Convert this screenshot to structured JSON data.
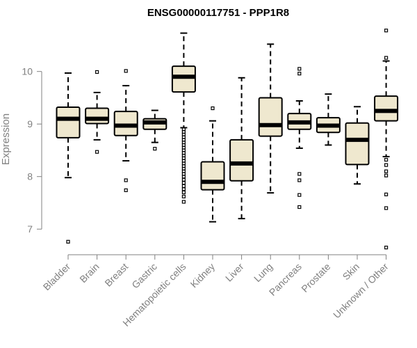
{
  "chart_data": {
    "type": "boxplot",
    "title": "ENSG00000117751 - PPP1R8",
    "xlabel": "",
    "ylabel": "Expression",
    "ylim": [
      6.6,
      10.8
    ],
    "yticks": [
      7,
      8,
      9,
      10
    ],
    "categories": [
      "Bladder",
      "Brain",
      "Breast",
      "Gastric",
      "Hematopoietic cells",
      "Kidney",
      "Liver",
      "Lung",
      "Pancreas",
      "Prostate",
      "Skin",
      "Unknown / Other"
    ],
    "boxes": [
      {
        "name": "Bladder",
        "whisker_low": 7.98,
        "q1": 8.74,
        "median": 9.1,
        "q3": 9.32,
        "whisker_high": 9.97,
        "outliers": [
          6.76
        ]
      },
      {
        "name": "Brain",
        "whisker_low": 8.7,
        "q1": 9.01,
        "median": 9.1,
        "q3": 9.3,
        "whisker_high": 9.6,
        "outliers": [
          8.47,
          9.99
        ]
      },
      {
        "name": "Breast",
        "whisker_low": 8.3,
        "q1": 8.78,
        "median": 8.97,
        "q3": 9.24,
        "whisker_high": 9.73,
        "outliers": [
          7.93,
          7.74,
          10.01
        ]
      },
      {
        "name": "Gastric",
        "whisker_low": 8.65,
        "q1": 8.9,
        "median": 9.03,
        "q3": 9.1,
        "whisker_high": 9.26,
        "outliers": [
          8.53
        ]
      },
      {
        "name": "Hematopoietic cells",
        "whisker_low": 8.93,
        "q1": 9.61,
        "median": 9.9,
        "q3": 10.1,
        "whisker_high": 10.73,
        "outliers": [
          7.52,
          7.62,
          7.7,
          7.76,
          7.82,
          7.88,
          7.94,
          8.0,
          8.05,
          8.1,
          8.15,
          8.2,
          8.25,
          8.3,
          8.35,
          8.4,
          8.45,
          8.5,
          8.55,
          8.6,
          8.65,
          8.7,
          8.75,
          8.8,
          8.85,
          8.9
        ]
      },
      {
        "name": "Kidney",
        "whisker_low": 7.14,
        "q1": 7.75,
        "median": 7.9,
        "q3": 8.28,
        "whisker_high": 9.06,
        "outliers": [
          9.3
        ]
      },
      {
        "name": "Liver",
        "whisker_low": 7.2,
        "q1": 7.92,
        "median": 8.25,
        "q3": 8.7,
        "whisker_high": 9.88,
        "outliers": []
      },
      {
        "name": "Lung",
        "whisker_low": 7.69,
        "q1": 8.77,
        "median": 8.98,
        "q3": 9.5,
        "whisker_high": 10.52,
        "outliers": []
      },
      {
        "name": "Pancreas",
        "whisker_low": 8.54,
        "q1": 8.9,
        "median": 9.03,
        "q3": 9.2,
        "whisker_high": 9.44,
        "outliers": [
          10.05,
          9.96,
          8.05,
          7.93,
          7.65,
          7.42
        ]
      },
      {
        "name": "Prostate",
        "whisker_low": 8.6,
        "q1": 8.84,
        "median": 8.97,
        "q3": 9.12,
        "whisker_high": 9.57,
        "outliers": []
      },
      {
        "name": "Skin",
        "whisker_low": 7.86,
        "q1": 8.23,
        "median": 8.7,
        "q3": 9.02,
        "whisker_high": 9.33,
        "outliers": []
      },
      {
        "name": "Unknown / Other",
        "whisker_low": 8.38,
        "q1": 9.06,
        "median": 9.25,
        "q3": 9.53,
        "whisker_high": 10.2,
        "outliers": [
          10.78,
          10.26,
          8.32,
          8.22,
          8.1,
          8.02,
          7.66,
          7.4,
          6.65
        ]
      }
    ]
  },
  "colors": {
    "box_fill": "#efe8cf",
    "box_stroke": "#000000",
    "median": "#000000",
    "axis": "#808080",
    "title": "#000000"
  }
}
